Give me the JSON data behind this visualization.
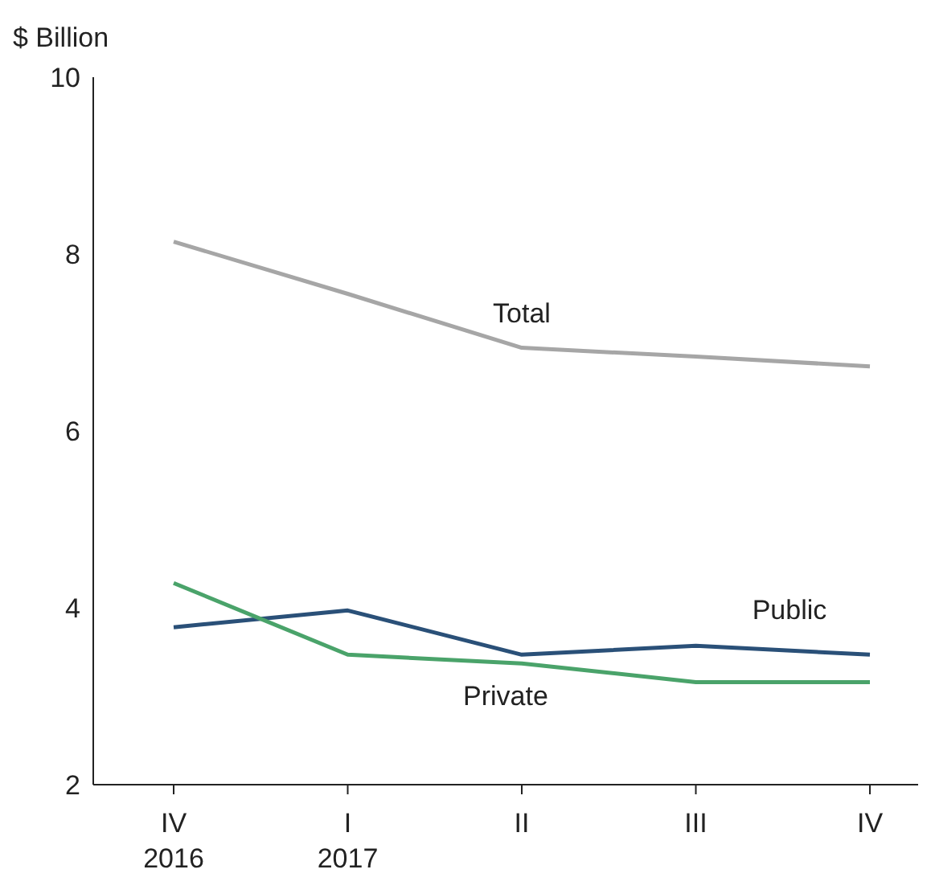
{
  "chart_data": {
    "type": "line",
    "ylabel": "$ Billion",
    "categories": [
      "IV\n2016",
      "I\n2017",
      "II",
      "III",
      "IV"
    ],
    "series": [
      {
        "name": "Total",
        "color": "#a6a6a6",
        "values": [
          8.14,
          7.55,
          6.94,
          6.84,
          6.73
        ]
      },
      {
        "name": "Public",
        "color": "#2a5078",
        "values": [
          3.78,
          3.97,
          3.47,
          3.57,
          3.47
        ]
      },
      {
        "name": "Private",
        "color": "#4aa36a",
        "values": [
          4.28,
          3.47,
          3.37,
          3.16,
          3.16
        ]
      }
    ],
    "ylim": [
      2,
      10
    ],
    "yticks": [
      2,
      4,
      6,
      8,
      10
    ],
    "grid": false,
    "legend": false,
    "marker": "none",
    "line_style": "solid"
  }
}
